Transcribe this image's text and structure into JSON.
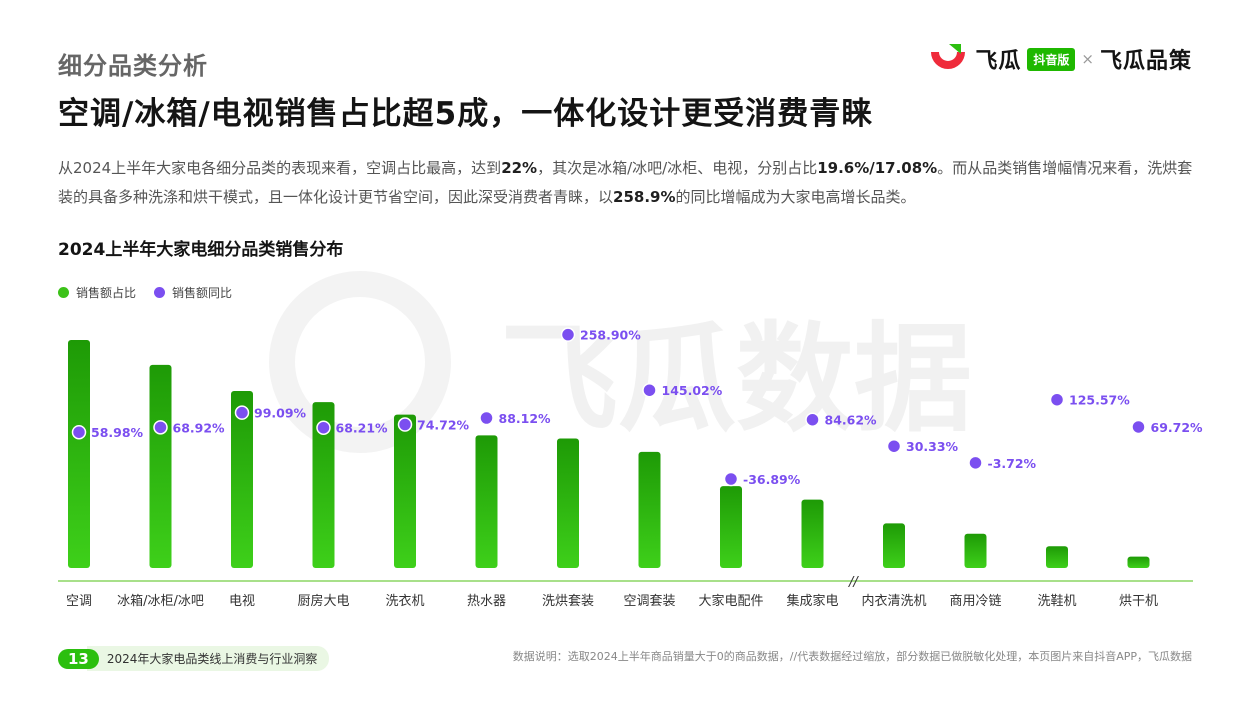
{
  "header": {
    "section_title": "细分品类分析",
    "headline": "空调/冰箱/电视销售占比超5成，一体化设计更受消费青睐",
    "logo_text_1": "飞瓜",
    "logo_badge": "抖音版",
    "logo_x": "×",
    "logo_text_2": "飞瓜品策"
  },
  "description": {
    "line1_a": "从2024上半年大家电各细分品类的表现来看，空调占比最高，达到",
    "line1_b": "22%",
    "line1_c": "，其次是冰箱/冰吧/冰柜、电视，分别占比",
    "line1_d": "19.6%/17.08%",
    "line1_e": "。而从品类销售增幅情况来看，洗烘套装的具备多种洗涤和烘干模式，且一体化设计更节省空间，因此深受消费者青睐，以",
    "line1_f": "258.9%",
    "line1_g": "的同比增幅成为大家电高增长品类。"
  },
  "chart_data": {
    "type": "bar",
    "title": "2024上半年大家电细分品类销售分布",
    "legend": [
      "销售额占比",
      "销售额同比"
    ],
    "legend_position": "top-left",
    "categories": [
      "空调",
      "冰箱/冰柜/冰吧",
      "电视",
      "厨房大电",
      "洗衣机",
      "热水器",
      "洗烘套装",
      "空调套装",
      "大家电配件",
      "集成家电",
      "内衣清洗机",
      "商用冷链",
      "洗鞋机",
      "烘干机"
    ],
    "series": [
      {
        "name": "销售额占比",
        "values": [
          22,
          19.6,
          17.08,
          16.0,
          14.8,
          12.8,
          12.5,
          11.2,
          7.9,
          6.6,
          4.3,
          3.3,
          2.1,
          1.1
        ],
        "color": "#21a30a",
        "note_scaled": true
      },
      {
        "name": "销售额同比",
        "values": [
          58.98,
          68.92,
          99.09,
          68.21,
          74.72,
          88.12,
          258.9,
          145.02,
          -36.89,
          84.62,
          30.33,
          -3.72,
          125.57,
          69.72
        ],
        "labels": [
          "58.98%",
          "68.92%",
          "99.09%",
          "68.21%",
          "74.72%",
          "88.12%",
          "258.90%",
          "145.02%",
          "-36.89%",
          "84.62%",
          "30.33%",
          "-3.72%",
          "125.57%",
          "69.72%"
        ],
        "color": "#7b4ff0"
      }
    ],
    "axis_break_mark": "//",
    "grid": false
  },
  "watermark": "飞瓜数据",
  "footer": {
    "page_number": "13",
    "report_title": "2024年大家电品类线上消费与行业洞察",
    "note": "数据说明：选取2024上半年商品销量大于0的商品数据，//代表数据经过缩放，部分数据已做脱敏化处理，本页图片来自抖音APP，飞瓜数据"
  },
  "colors": {
    "bar_green": "#21a30a",
    "yoy_purple": "#7b4ff0",
    "baseline": "#a8e08a"
  }
}
